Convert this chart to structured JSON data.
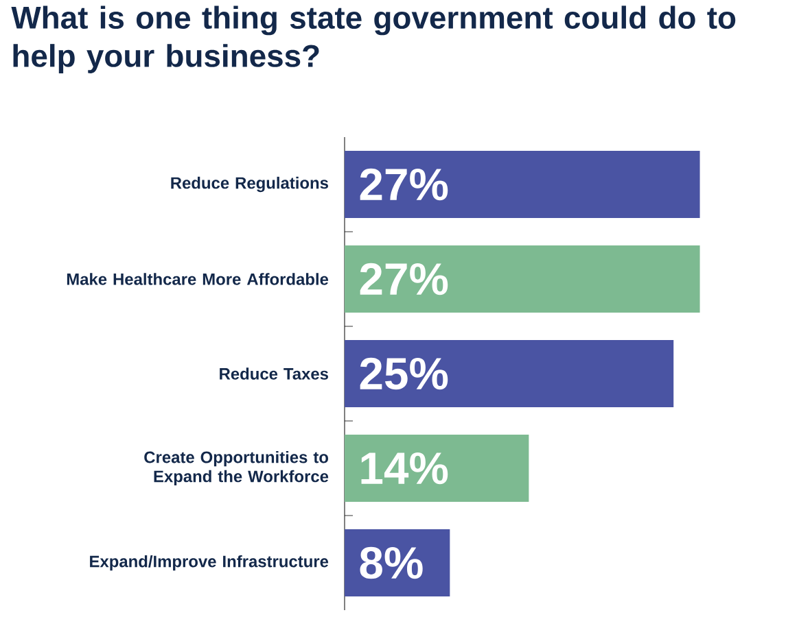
{
  "chart_data": {
    "type": "bar",
    "orientation": "horizontal",
    "title": "What is one thing state government could do to help your business?",
    "categories": [
      "Reduce Regulations",
      "Make Healthcare More Affordable",
      "Reduce Taxes",
      "Create Opportunities to Expand the Workforce",
      "Expand/Improve Infrastructure"
    ],
    "values": [
      27,
      27,
      25,
      14,
      8
    ],
    "colors": [
      "#4a54a3",
      "#7dba91",
      "#4a54a3",
      "#7dba91",
      "#4a54a3"
    ],
    "value_labels": [
      "27%",
      "27%",
      "25%",
      "14%",
      "8%"
    ]
  }
}
